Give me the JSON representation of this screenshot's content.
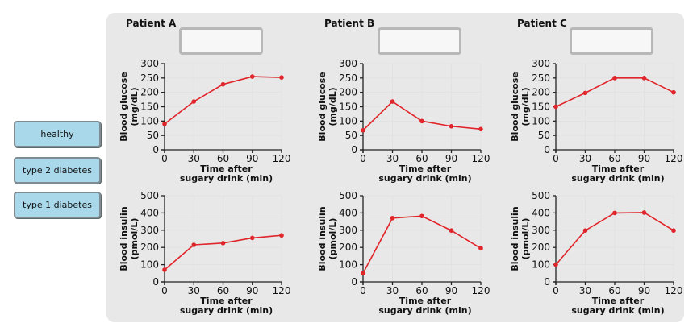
{
  "answer_options": [
    {
      "label": "healthy"
    },
    {
      "label": "type 2 diabetes"
    },
    {
      "label": "type 1 diabetes"
    }
  ],
  "patients": [
    {
      "title": "Patient A"
    },
    {
      "title": "Patient B"
    },
    {
      "title": "Patient C"
    }
  ],
  "chart_data": [
    {
      "type": "line",
      "panel": "Patient A glucose",
      "x": [
        0,
        30,
        60,
        90,
        120
      ],
      "y": [
        90,
        168,
        228,
        255,
        252
      ],
      "xlabel": [
        "Time after",
        "sugary drink (min)"
      ],
      "ylabel": [
        "Blood glucose",
        "(mg/dL)"
      ],
      "xlim": [
        0,
        120
      ],
      "ylim": [
        0,
        300
      ],
      "xticks": [
        0,
        30,
        60,
        90,
        120
      ],
      "yticks": [
        0,
        50,
        100,
        150,
        200,
        250,
        300
      ],
      "grid": true
    },
    {
      "type": "line",
      "panel": "Patient B glucose",
      "x": [
        0,
        30,
        60,
        90,
        120
      ],
      "y": [
        68,
        168,
        100,
        82,
        72
      ],
      "xlabel": [
        "Time after",
        "sugary drink (min)"
      ],
      "ylabel": [
        "Blood glucose",
        "(mg/dL)"
      ],
      "xlim": [
        0,
        120
      ],
      "ylim": [
        0,
        300
      ],
      "xticks": [
        0,
        30,
        60,
        90,
        120
      ],
      "yticks": [
        0,
        50,
        100,
        150,
        200,
        250,
        300
      ],
      "grid": true
    },
    {
      "type": "line",
      "panel": "Patient C glucose",
      "x": [
        0,
        30,
        60,
        90,
        120
      ],
      "y": [
        150,
        198,
        250,
        250,
        200
      ],
      "xlabel": [
        "Time after",
        "sugary drink (min)"
      ],
      "ylabel": [
        "Blood glucose",
        "(mg/dL)"
      ],
      "xlim": [
        0,
        120
      ],
      "ylim": [
        0,
        300
      ],
      "xticks": [
        0,
        30,
        60,
        90,
        120
      ],
      "yticks": [
        0,
        50,
        100,
        150,
        200,
        250,
        300
      ],
      "grid": true
    },
    {
      "type": "line",
      "panel": "Patient A insulin",
      "x": [
        0,
        30,
        60,
        90,
        120
      ],
      "y": [
        70,
        215,
        225,
        255,
        270
      ],
      "xlabel": [
        "Time after",
        "sugary drink (min)"
      ],
      "ylabel": [
        "Blood insulin",
        "(pmol/L)"
      ],
      "xlim": [
        0,
        120
      ],
      "ylim": [
        0,
        500
      ],
      "xticks": [
        0,
        30,
        60,
        90,
        120
      ],
      "yticks": [
        0,
        100,
        200,
        300,
        400,
        500
      ],
      "grid": true
    },
    {
      "type": "line",
      "panel": "Patient B insulin",
      "x": [
        0,
        30,
        60,
        90,
        120
      ],
      "y": [
        50,
        370,
        382,
        298,
        195
      ],
      "xlabel": [
        "Time after",
        "sugary drink (min)"
      ],
      "ylabel": [
        "Blood insulin",
        "(pmol/L)"
      ],
      "xlim": [
        0,
        120
      ],
      "ylim": [
        0,
        500
      ],
      "xticks": [
        0,
        30,
        60,
        90,
        120
      ],
      "yticks": [
        0,
        100,
        200,
        300,
        400,
        500
      ],
      "grid": true
    },
    {
      "type": "line",
      "panel": "Patient C insulin",
      "x": [
        0,
        30,
        60,
        90,
        120
      ],
      "y": [
        100,
        298,
        400,
        402,
        298
      ],
      "xlabel": [
        "Time after",
        "sugary drink (min)"
      ],
      "ylabel": [
        "Blood insulin",
        "(pmol/L)"
      ],
      "xlim": [
        0,
        120
      ],
      "ylim": [
        0,
        500
      ],
      "xticks": [
        0,
        30,
        60,
        90,
        120
      ],
      "yticks": [
        0,
        100,
        200,
        300,
        400,
        500
      ],
      "grid": true
    }
  ],
  "colors": {
    "line": "#e0252b",
    "button_fill": "#a8d8ea",
    "panel_bg": "#e8e8e8"
  }
}
